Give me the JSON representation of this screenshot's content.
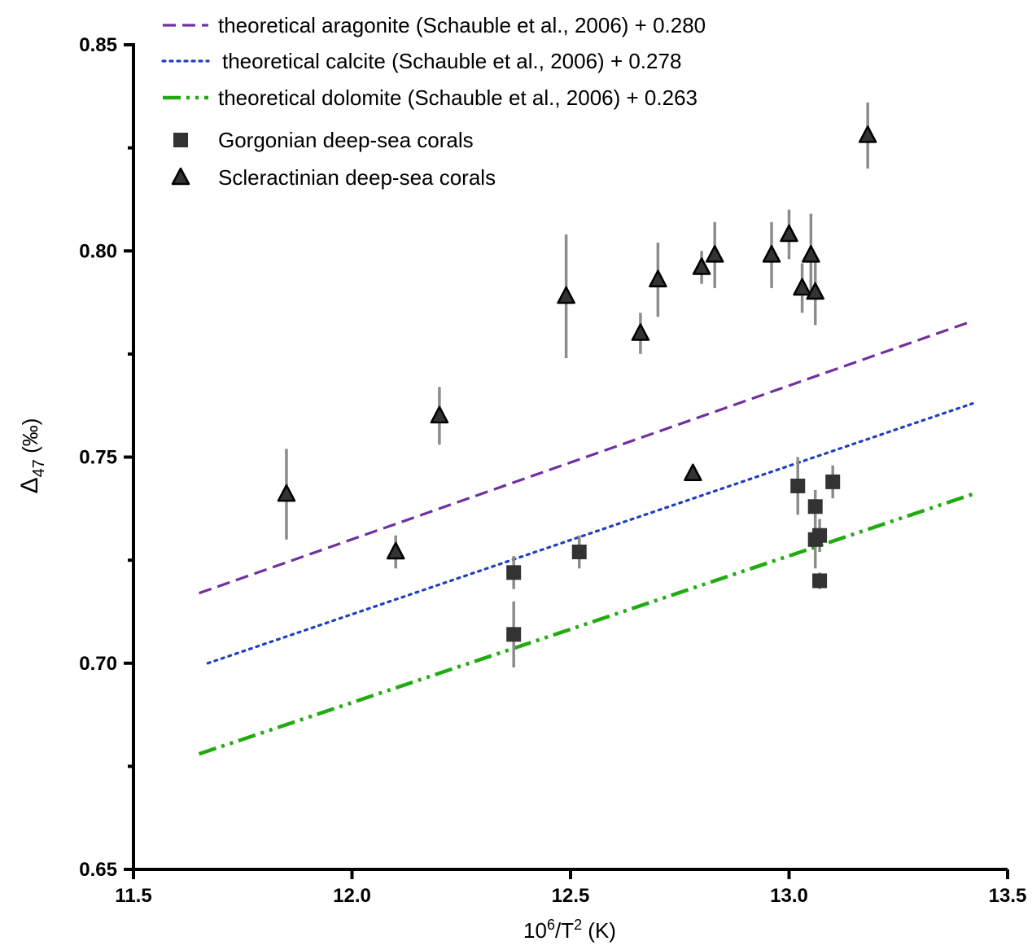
{
  "chart_data": {
    "type": "scatter",
    "title": "",
    "xlabel": {
      "base": "10",
      "sup1": "6",
      "mid": "/T",
      "sup2": "2",
      "unit": " (K)"
    },
    "ylabel": {
      "symbol": "Δ",
      "sub": "47",
      "unit": " (‰)"
    },
    "xlim": [
      11.5,
      13.5
    ],
    "ylim": [
      0.65,
      0.85
    ],
    "xticks": [
      11.5,
      12.0,
      12.5,
      13.0,
      13.5
    ],
    "xtick_labels": [
      "11.5",
      "12.0",
      "12.5",
      "13.0",
      "13.5"
    ],
    "yticks": [
      0.65,
      0.7,
      0.75,
      0.8,
      0.85
    ],
    "ytick_labels": [
      "0.65",
      "0.70",
      "0.75",
      "0.80",
      "0.85"
    ],
    "yminor": [
      0.675,
      0.725,
      0.775,
      0.825
    ],
    "grid": false,
    "legend_position": "top-left",
    "lines": [
      {
        "name": "theoretical aragonite (Schauble et al., 2006) + 0.280",
        "color": "#7030a0",
        "style": "dash",
        "points": [
          [
            11.65,
            0.717
          ],
          [
            13.42,
            0.783
          ]
        ]
      },
      {
        "name": "theoretical calcite (Schauble et al., 2006) + 0.278",
        "color": "#1f3fbf",
        "style": "dot",
        "points": [
          [
            11.67,
            0.7
          ],
          [
            13.42,
            0.763
          ]
        ]
      },
      {
        "name": "theoretical dolomite (Schauble et al., 2006) + 0.263",
        "color": "#22aa11",
        "style": "dashdotdot",
        "points": [
          [
            11.65,
            0.678
          ],
          [
            13.42,
            0.741
          ]
        ]
      }
    ],
    "series": [
      {
        "name": "Gorgonian deep-sea corals",
        "marker": "square",
        "color": "#333333",
        "points": [
          {
            "x": 12.37,
            "y": 0.722,
            "err": 0.004
          },
          {
            "x": 12.37,
            "y": 0.707,
            "err": 0.008
          },
          {
            "x": 12.52,
            "y": 0.727,
            "err": 0.004
          },
          {
            "x": 13.02,
            "y": 0.743,
            "err": 0.007
          },
          {
            "x": 13.06,
            "y": 0.738,
            "err": 0.004
          },
          {
            "x": 13.06,
            "y": 0.73,
            "err": 0.007
          },
          {
            "x": 13.07,
            "y": 0.731,
            "err": 0.004
          },
          {
            "x": 13.07,
            "y": 0.72,
            "err": 0.002
          },
          {
            "x": 13.1,
            "y": 0.744,
            "err": 0.004
          }
        ]
      },
      {
        "name": "Scleractinian deep-sea corals",
        "marker": "triangle",
        "color": "#333333",
        "points": [
          {
            "x": 11.85,
            "y": 0.741,
            "err": 0.011
          },
          {
            "x": 12.1,
            "y": 0.727,
            "err": 0.004
          },
          {
            "x": 12.2,
            "y": 0.76,
            "err": 0.007
          },
          {
            "x": 12.49,
            "y": 0.789,
            "err": 0.015
          },
          {
            "x": 12.66,
            "y": 0.78,
            "err": 0.005
          },
          {
            "x": 12.7,
            "y": 0.793,
            "err": 0.009
          },
          {
            "x": 12.78,
            "y": 0.746,
            "err": 0.001
          },
          {
            "x": 12.8,
            "y": 0.796,
            "err": 0.004
          },
          {
            "x": 12.83,
            "y": 0.799,
            "err": 0.008
          },
          {
            "x": 12.96,
            "y": 0.799,
            "err": 0.008
          },
          {
            "x": 13.0,
            "y": 0.804,
            "err": 0.006
          },
          {
            "x": 13.03,
            "y": 0.791,
            "err": 0.006
          },
          {
            "x": 13.05,
            "y": 0.799,
            "err": 0.01
          },
          {
            "x": 13.06,
            "y": 0.79,
            "err": 0.008
          },
          {
            "x": 13.18,
            "y": 0.828,
            "err": 0.008
          }
        ]
      }
    ]
  }
}
